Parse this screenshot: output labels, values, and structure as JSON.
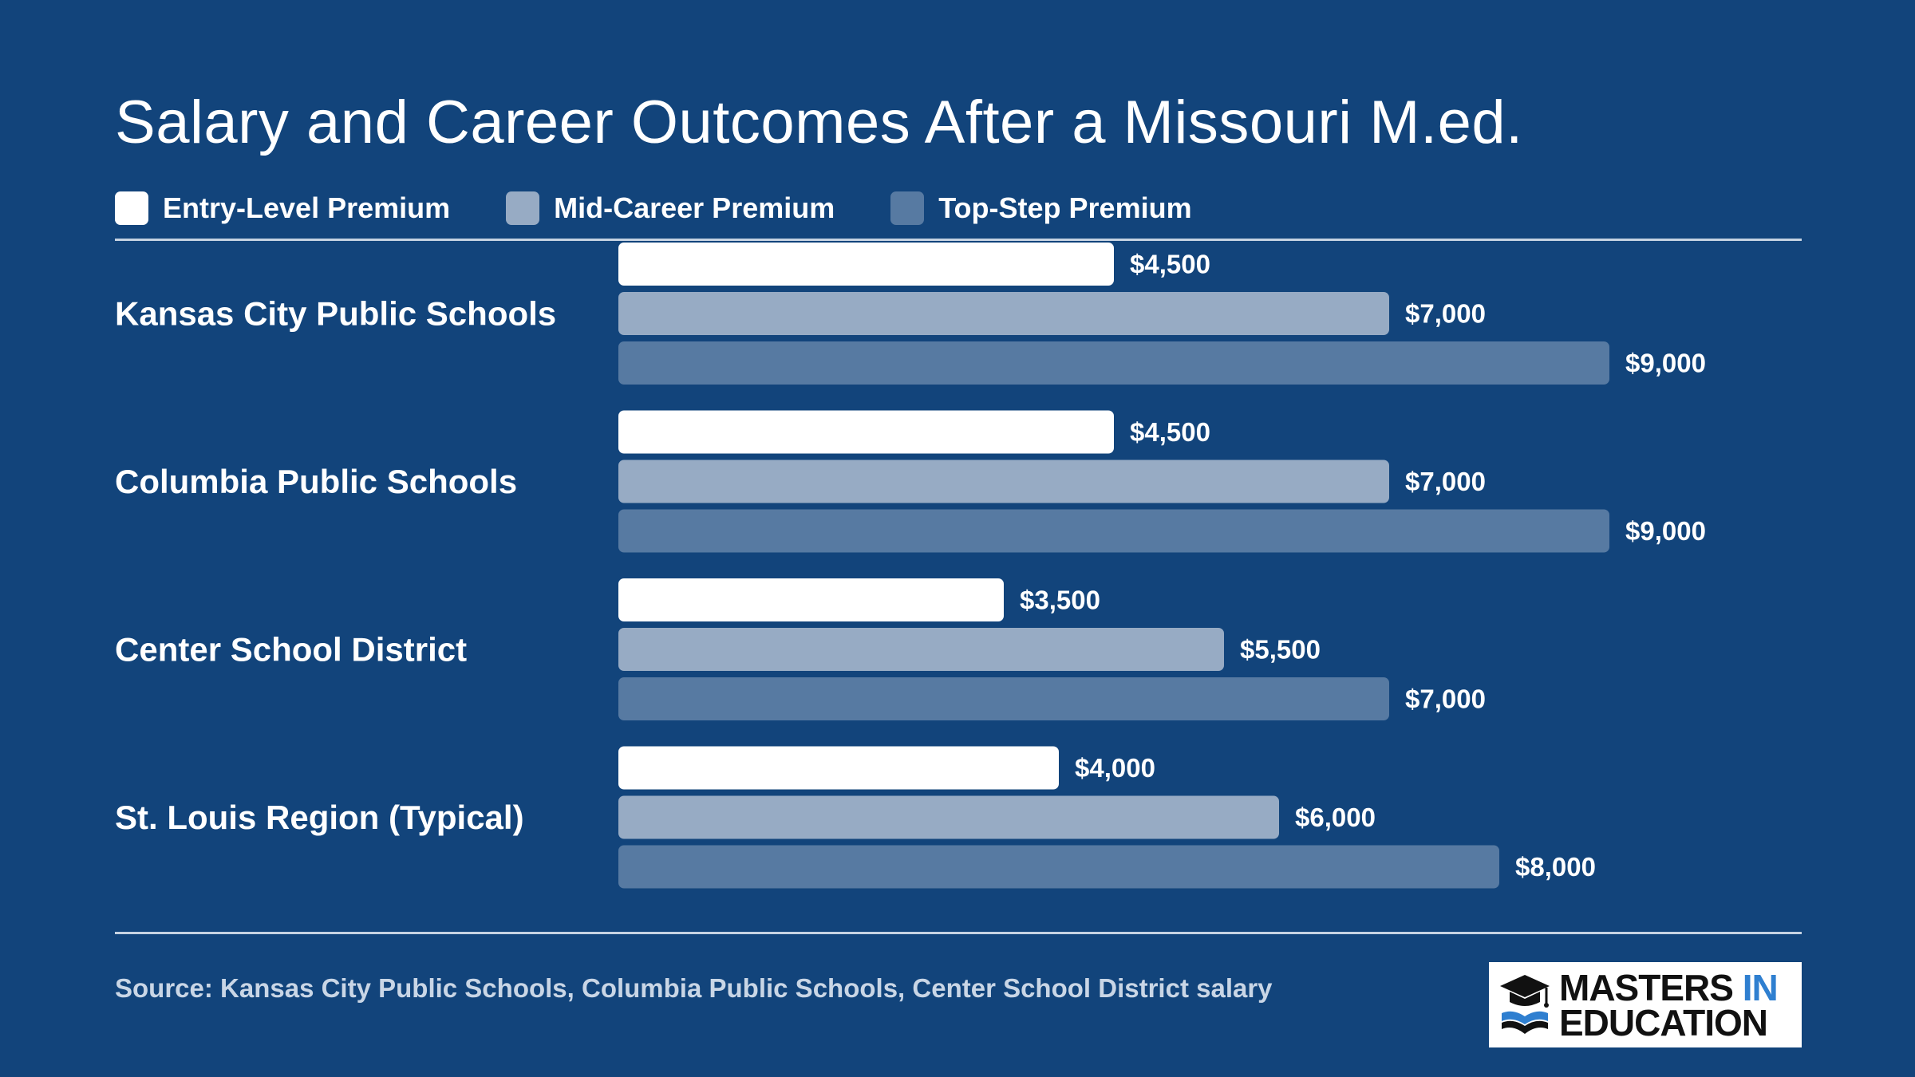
{
  "title": "Salary and Career Outcomes After a Missouri M.ed.",
  "legend": [
    {
      "label": "Entry-Level Premium",
      "color": "#ffffff"
    },
    {
      "label": "Mid-Career Premium",
      "color": "#97abc4"
    },
    {
      "label": "Top-Step Premium",
      "color": "#577aa2"
    }
  ],
  "chart_data": {
    "type": "bar",
    "orientation": "horizontal",
    "categories": [
      "Kansas City Public Schools",
      "Columbia Public Schools",
      "Center School District",
      "St. Louis Region (Typical)"
    ],
    "series": [
      {
        "name": "Entry-Level Premium",
        "values": [
          4500,
          4500,
          3500,
          4000
        ],
        "labels": [
          "$4,500",
          "$4,500",
          "$3,500",
          "$4,000"
        ],
        "color": "#ffffff"
      },
      {
        "name": "Mid-Career Premium",
        "values": [
          7000,
          7000,
          5500,
          6000
        ],
        "labels": [
          "$7,000",
          "$7,000",
          "$5,500",
          "$6,000"
        ],
        "color": "#97abc4"
      },
      {
        "name": "Top-Step Premium",
        "values": [
          9000,
          9000,
          7000,
          8000
        ],
        "labels": [
          "$9,000",
          "$9,000",
          "$7,000",
          "$8,000"
        ],
        "color": "#577aa2"
      }
    ],
    "xlim": [
      0,
      9000
    ],
    "grid": false,
    "legend_position": "top-left"
  },
  "source": "Source: Kansas City Public Schools, Columbia Public Schools, Center School District salary",
  "logo": {
    "line1": "MASTERS",
    "line1_accent": "IN",
    "line2": "EDUCATION"
  }
}
